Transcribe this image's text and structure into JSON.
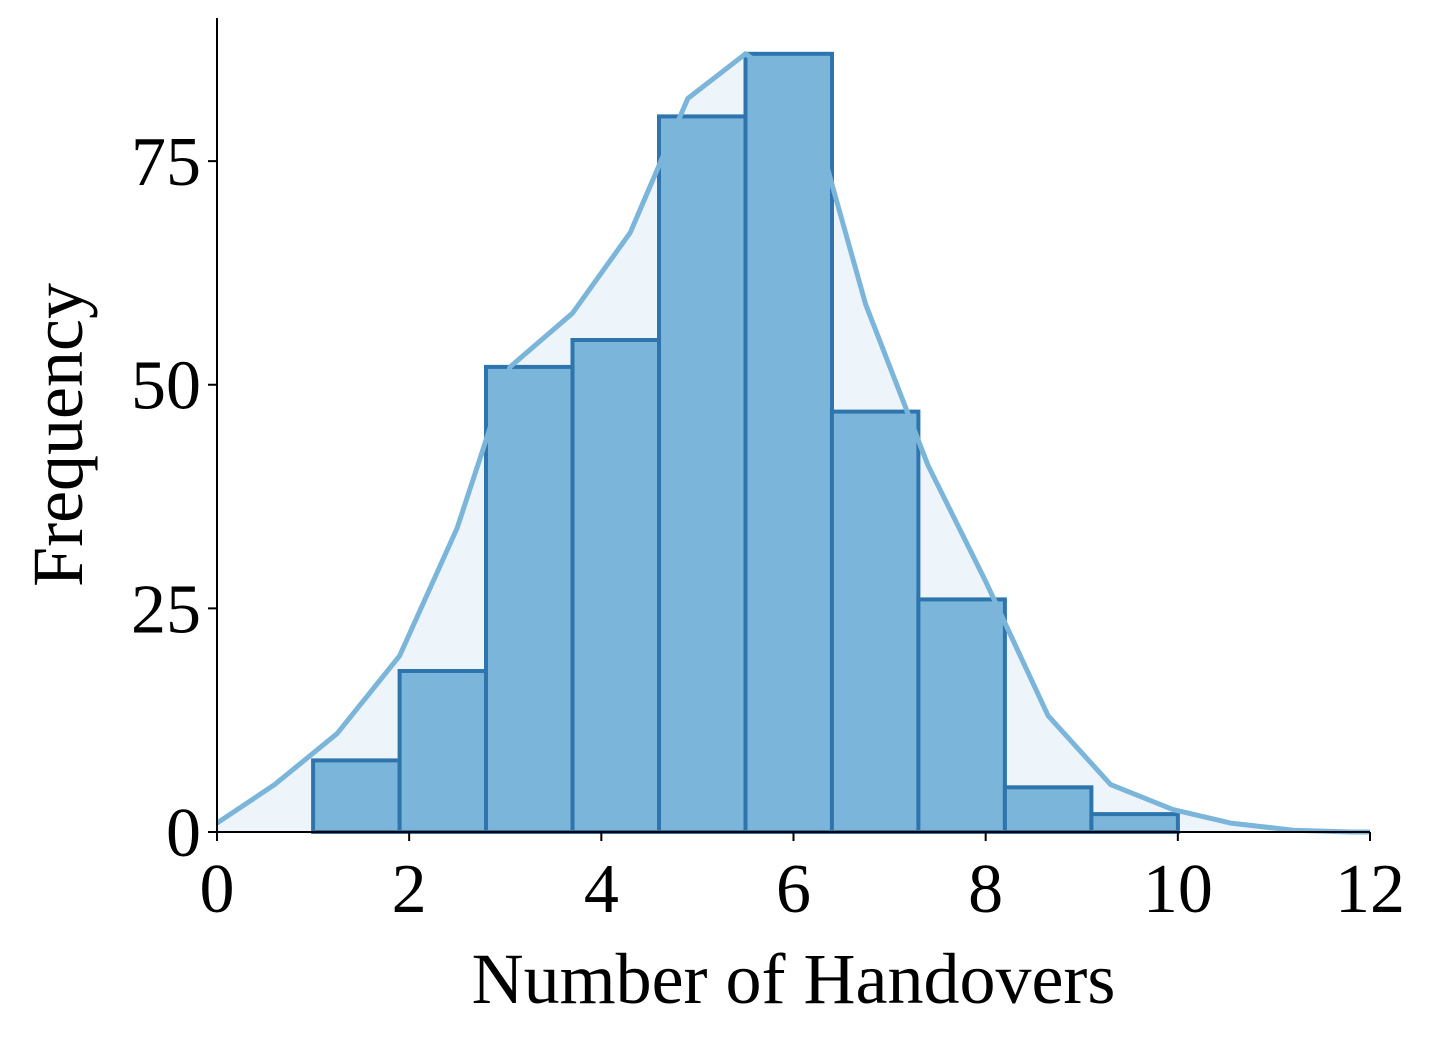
{
  "chart_data": {
    "type": "bar",
    "xlabel": "Number of Handovers",
    "ylabel": "Frequency",
    "xlim": [
      0,
      12
    ],
    "ylim": [
      0,
      91
    ],
    "x_ticks": [
      "0",
      "2",
      "4",
      "6",
      "8",
      "10",
      "12"
    ],
    "y_ticks": [
      "0",
      "25",
      "50",
      "75"
    ],
    "bins": [
      {
        "x0": 1.0,
        "x1": 1.9,
        "value": 8
      },
      {
        "x0": 1.9,
        "x1": 2.8,
        "value": 18
      },
      {
        "x0": 2.8,
        "x1": 3.7,
        "value": 52
      },
      {
        "x0": 3.7,
        "x1": 4.6,
        "value": 55
      },
      {
        "x0": 4.6,
        "x1": 5.5,
        "value": 80
      },
      {
        "x0": 5.5,
        "x1": 6.4,
        "value": 87
      },
      {
        "x0": 6.4,
        "x1": 7.3,
        "value": 47
      },
      {
        "x0": 7.3,
        "x1": 8.2,
        "value": 26
      },
      {
        "x0": 8.2,
        "x1": 9.1,
        "value": 5
      },
      {
        "x0": 9.1,
        "x1": 10.0,
        "value": 2
      }
    ],
    "density_curve": {
      "x": [
        0,
        0.6,
        1.25,
        1.9,
        2.5,
        3.05,
        3.7,
        4.3,
        4.9,
        5.5,
        6.15,
        6.75,
        7.4,
        8.0,
        8.65,
        9.3,
        9.95,
        10.55,
        11.2,
        11.8,
        12.0
      ],
      "y": [
        1,
        5.3,
        11,
        19.7,
        34,
        52,
        58,
        67,
        82,
        87,
        82,
        59,
        41,
        28,
        13,
        5.3,
        2.5,
        1,
        0.2,
        0,
        0
      ]
    },
    "grid": false,
    "colors": {
      "bar_fill": "#7bb5da",
      "bar_edge": "#2e75ad",
      "curve_line": "#7bb5da",
      "curve_fill": "#eef5fa",
      "axis": "#000000"
    }
  }
}
